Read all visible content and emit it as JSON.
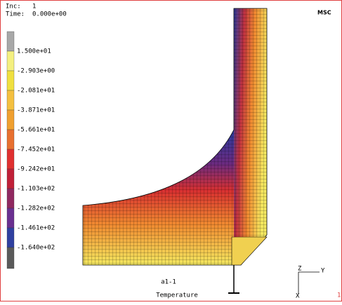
{
  "header": {
    "inc_label": "Inc:",
    "inc": "1",
    "time_label": "Time:",
    "time": "0.000e+00"
  },
  "logo": "MSC",
  "legend": {
    "labels": [
      "1.500e+01",
      "-2.903e+00",
      "-2.081e+01",
      "-3.871e+01",
      "-5.661e+01",
      "-7.452e+01",
      "-9.242e+01",
      "-1.103e+02",
      "-1.282e+02",
      "-1.461e+02",
      "-1.640e+02"
    ]
  },
  "triad": {
    "z": "Z",
    "y": "Y",
    "x": "X"
  },
  "footer": {
    "job": "a1-1",
    "variable": "Temperature",
    "window": "1"
  }
}
